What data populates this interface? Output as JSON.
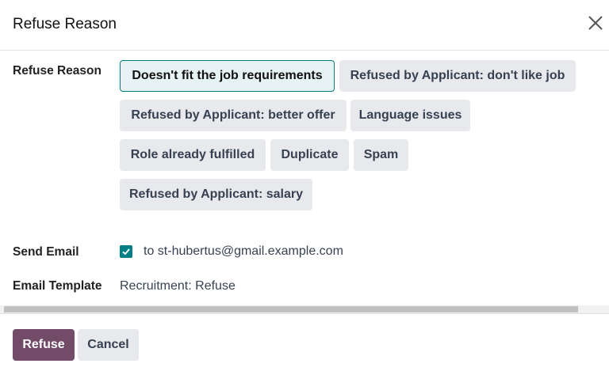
{
  "dialog": {
    "title": "Refuse Reason",
    "close_icon": "close-icon"
  },
  "refuse_reason": {
    "label": "Refuse Reason",
    "selected": "Doesn't fit the job requirements",
    "options": [
      "Doesn't fit the job requirements",
      "Refused by Applicant: don't like job",
      "Refused by Applicant: better offer",
      "Language issues",
      "Role already fulfilled",
      "Duplicate",
      "Spam",
      "Refused by Applicant: salary"
    ]
  },
  "send_email": {
    "label": "Send Email",
    "checked": true,
    "recipient": "to st-hubertus@gmail.example.com"
  },
  "email_template": {
    "label": "Email Template",
    "value": "Recruitment: Refuse"
  },
  "footer": {
    "refuse_label": "Refuse",
    "cancel_label": "Cancel"
  },
  "colors": {
    "primary": "#714b67",
    "accent": "#017e84"
  }
}
